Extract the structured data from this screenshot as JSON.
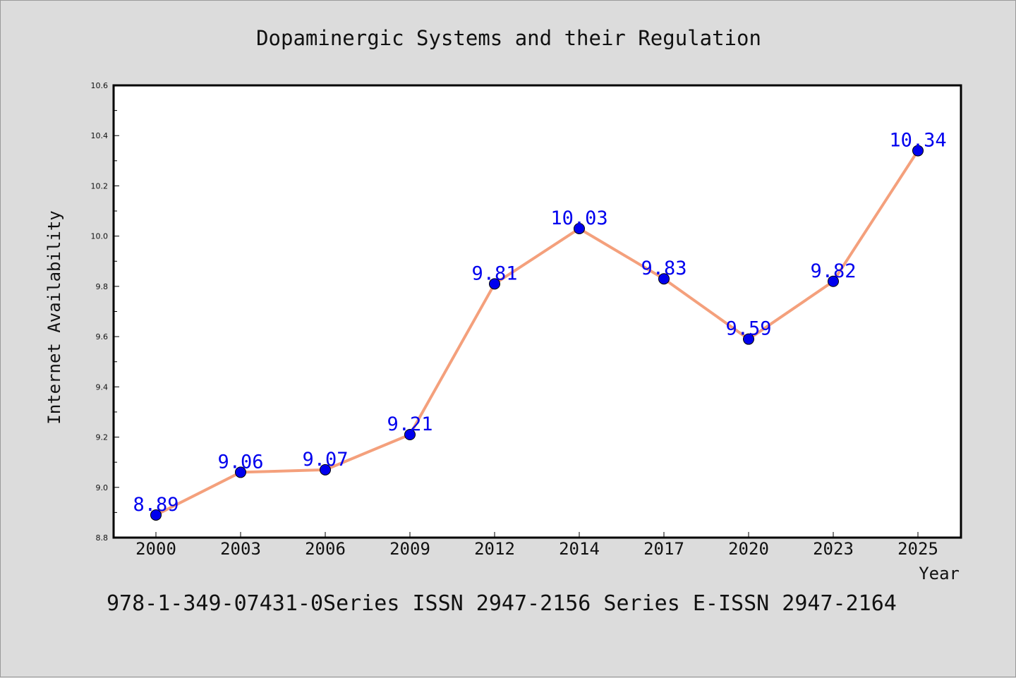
{
  "chart_data": {
    "type": "line",
    "title": "Dopaminergic Systems and their Regulation",
    "xlabel": "Year",
    "ylabel": "Internet Availability",
    "categories": [
      "2000",
      "2003",
      "2006",
      "2009",
      "2012",
      "2014",
      "2017",
      "2020",
      "2023",
      "2025"
    ],
    "values": [
      8.89,
      9.06,
      9.07,
      9.21,
      9.81,
      10.03,
      9.83,
      9.59,
      9.82,
      10.34
    ],
    "data_labels": [
      "8.89",
      "9.06",
      "9.07",
      "9.21",
      "9.81",
      "10.03",
      "9.83",
      "9.59",
      "9.82",
      "10.34"
    ],
    "ylim": [
      8.8,
      10.6
    ],
    "yticks": [
      "8.8",
      "9.0",
      "9.2",
      "9.4",
      "9.6",
      "9.8",
      "10.0",
      "10.2",
      "10.4",
      "10.6"
    ],
    "grid": false,
    "colors": {
      "line": "#f4a07c",
      "marker": "#0000ee",
      "label": "#0000ee",
      "background": "#dcdcdc",
      "plot_background": "#ffffff"
    }
  },
  "footer": {
    "caption": "978-1-349-07431-0Series ISSN 2947-2156 Series E-ISSN 2947-2164"
  }
}
